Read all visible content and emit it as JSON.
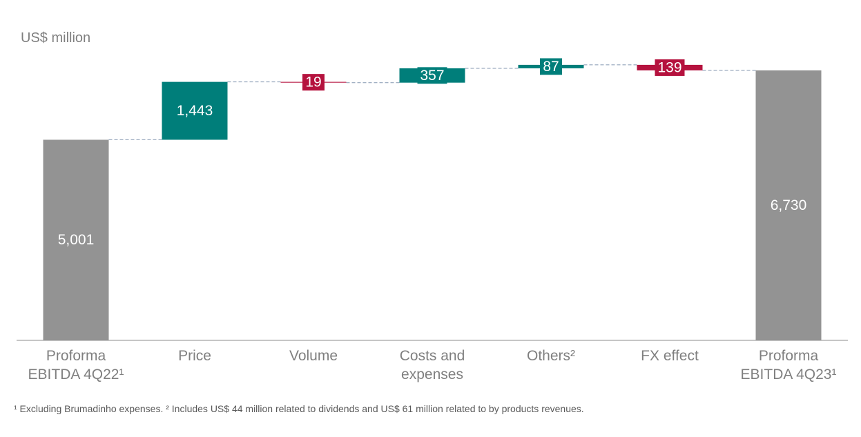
{
  "unit_label": "US$ million",
  "footnote": "¹ Excluding Brumadinho expenses. ² Includes US$ 44 million related to dividends and US$ 61 million related to by products revenues.",
  "colors": {
    "total": "#939393",
    "increase": "#007e7a",
    "decrease": "#b5123e",
    "connector": "#8497b0",
    "axis": "#8c8c8c",
    "category_text": "#7f7f7f",
    "value_text": "#ffffff"
  },
  "chart_data": {
    "type": "waterfall",
    "title": "",
    "ylabel": "US$ million",
    "ylim": [
      0,
      7900
    ],
    "categories": [
      [
        "Proforma",
        "EBITDA 4Q22¹"
      ],
      [
        "Price"
      ],
      [
        "Volume"
      ],
      [
        "Costs and",
        "expenses"
      ],
      [
        "Others²"
      ],
      [
        "FX effect"
      ],
      [
        "Proforma",
        "EBITDA 4Q23¹"
      ]
    ],
    "steps": [
      {
        "kind": "total",
        "value": 5001,
        "label": "5,001"
      },
      {
        "kind": "increase",
        "value": 1443,
        "label": "1,443"
      },
      {
        "kind": "decrease",
        "value": 19,
        "label": "19"
      },
      {
        "kind": "increase",
        "value": 357,
        "label": "357"
      },
      {
        "kind": "increase",
        "value": 87,
        "label": "87"
      },
      {
        "kind": "decrease",
        "value": 139,
        "label": "139"
      },
      {
        "kind": "total",
        "value": 6730,
        "label": "6,730"
      }
    ]
  }
}
